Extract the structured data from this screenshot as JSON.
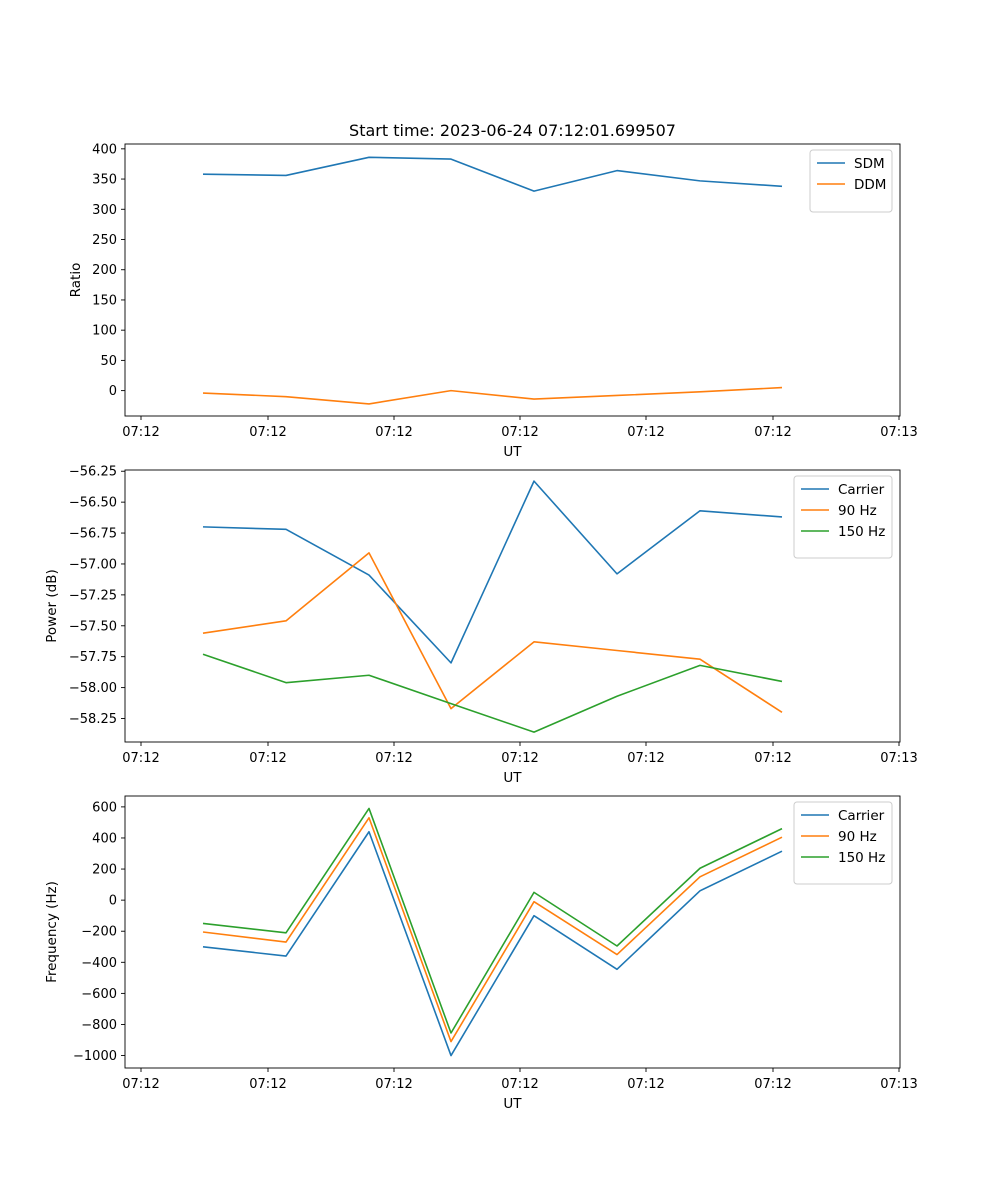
{
  "chart_data": [
    {
      "type": "line",
      "title": "Start time: 2023-06-24 07:12:01.699507",
      "xlabel": "UT",
      "ylabel": "Ratio",
      "xtick_labels": [
        "07:12",
        "07:12",
        "07:12",
        "07:12",
        "07:12",
        "07:12",
        "07:13"
      ],
      "yticks": [
        0,
        50,
        100,
        150,
        200,
        250,
        300,
        350,
        400
      ],
      "ytick_labels": [
        "0",
        "50",
        "100",
        "150",
        "200",
        "250",
        "300",
        "350",
        "400"
      ],
      "ylim": [
        -42,
        408
      ],
      "legend_position": "top-right",
      "grid": false,
      "series": [
        {
          "name": "SDM",
          "color": "#1f77b4",
          "values": [
            358,
            356,
            386,
            383,
            330,
            364,
            347,
            338
          ]
        },
        {
          "name": "DDM",
          "color": "#ff7f0e",
          "values": [
            -4,
            -10,
            -22,
            0,
            -14,
            -8,
            -2,
            5
          ]
        }
      ]
    },
    {
      "type": "line",
      "title": "",
      "xlabel": "UT",
      "ylabel": "Power (dB)",
      "xtick_labels": [
        "07:12",
        "07:12",
        "07:12",
        "07:12",
        "07:12",
        "07:12",
        "07:13"
      ],
      "yticks": [
        -58.25,
        -58.0,
        -57.75,
        -57.5,
        -57.25,
        -57.0,
        -56.75,
        -56.5,
        -56.25
      ],
      "ytick_labels": [
        "−58.25",
        "−58.00",
        "−57.75",
        "−57.50",
        "−57.25",
        "−57.00",
        "−56.75",
        "−56.50",
        "−56.25"
      ],
      "ylim": [
        -58.44,
        -56.24
      ],
      "legend_position": "top-right",
      "grid": false,
      "series": [
        {
          "name": "Carrier",
          "color": "#1f77b4",
          "values": [
            -56.7,
            -56.72,
            -57.09,
            -57.8,
            -56.33,
            -57.08,
            -56.57,
            -56.62
          ]
        },
        {
          "name": "90 Hz",
          "color": "#ff7f0e",
          "values": [
            -57.56,
            -57.46,
            -56.91,
            -58.17,
            -57.63,
            -57.7,
            -57.77,
            -58.2
          ]
        },
        {
          "name": "150 Hz",
          "color": "#2ca02c",
          "values": [
            -57.73,
            -57.96,
            -57.9,
            -58.13,
            -58.36,
            -58.07,
            -57.82,
            -57.95
          ]
        }
      ]
    },
    {
      "type": "line",
      "title": "",
      "xlabel": "UT",
      "ylabel": "Frequency (Hz)",
      "xtick_labels": [
        "07:12",
        "07:12",
        "07:12",
        "07:12",
        "07:12",
        "07:12",
        "07:13"
      ],
      "yticks": [
        -1000,
        -800,
        -600,
        -400,
        -200,
        0,
        200,
        400,
        600
      ],
      "ytick_labels": [
        "−1000",
        "−800",
        "−600",
        "−400",
        "−200",
        "0",
        "200",
        "400",
        "600"
      ],
      "ylim": [
        -1080,
        670
      ],
      "legend_position": "top-right",
      "grid": false,
      "series": [
        {
          "name": "Carrier",
          "color": "#1f77b4",
          "values": [
            -300,
            -360,
            440,
            -1000,
            -100,
            -445,
            60,
            315
          ]
        },
        {
          "name": "90 Hz",
          "color": "#ff7f0e",
          "values": [
            -205,
            -270,
            530,
            -910,
            -10,
            -350,
            150,
            405
          ]
        },
        {
          "name": "150 Hz",
          "color": "#2ca02c",
          "values": [
            -150,
            -210,
            590,
            -855,
            50,
            -295,
            205,
            460
          ]
        }
      ]
    }
  ]
}
